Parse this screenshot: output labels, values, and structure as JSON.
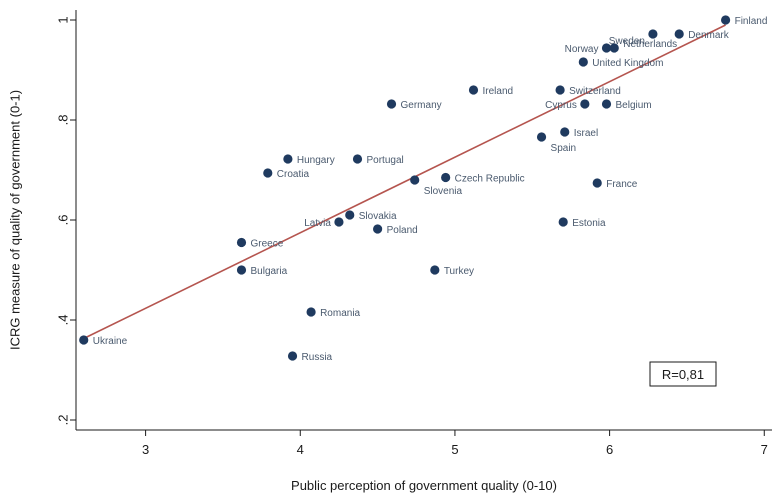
{
  "chart_data": {
    "type": "scatter",
    "title": "",
    "xlabel": "Public perception of government quality (0-10)",
    "ylabel": "ICRG measure of quality of government (0-1)",
    "xlim": [
      2.55,
      7.05
    ],
    "ylim": [
      0.18,
      1.02
    ],
    "xticks": [
      3,
      4,
      5,
      6,
      7
    ],
    "yticks": [
      0.2,
      0.4,
      0.6,
      0.8,
      1.0
    ],
    "xtick_labels": [
      "3",
      "4",
      "5",
      "6",
      "7"
    ],
    "ytick_labels": [
      ".2",
      ".4",
      ".6",
      ".8",
      "1"
    ],
    "grid": false,
    "colors": {
      "point": "#1f3a5f",
      "point_label": "#4a5a6e",
      "fit_line": "#b5554f",
      "axis": "#1a1a1a"
    },
    "points": [
      {
        "label": "Finland",
        "x": 6.75,
        "y": 1.0,
        "label_pos": "right"
      },
      {
        "label": "Sweden",
        "x": 6.28,
        "y": 0.972,
        "label_pos": "left-below"
      },
      {
        "label": "Denmark",
        "x": 6.45,
        "y": 0.972,
        "label_pos": "right"
      },
      {
        "label": "Norway",
        "x": 5.98,
        "y": 0.944,
        "label_pos": "left"
      },
      {
        "label": "Netherlands",
        "x": 6.03,
        "y": 0.944,
        "label_pos": "right-above"
      },
      {
        "label": "United Kingdom",
        "x": 5.83,
        "y": 0.916,
        "label_pos": "right"
      },
      {
        "label": "Ireland",
        "x": 5.12,
        "y": 0.86,
        "label_pos": "right"
      },
      {
        "label": "Switzerland",
        "x": 5.68,
        "y": 0.86,
        "label_pos": "right"
      },
      {
        "label": "Germany",
        "x": 4.59,
        "y": 0.832,
        "label_pos": "right"
      },
      {
        "label": "Cyprus",
        "x": 5.84,
        "y": 0.832,
        "label_pos": "left"
      },
      {
        "label": "Belgium",
        "x": 5.98,
        "y": 0.832,
        "label_pos": "right"
      },
      {
        "label": "Israel",
        "x": 5.71,
        "y": 0.776,
        "label_pos": "right"
      },
      {
        "label": "Spain",
        "x": 5.56,
        "y": 0.766,
        "label_pos": "right-below"
      },
      {
        "label": "Hungary",
        "x": 3.92,
        "y": 0.722,
        "label_pos": "right"
      },
      {
        "label": "Portugal",
        "x": 4.37,
        "y": 0.722,
        "label_pos": "right"
      },
      {
        "label": "Croatia",
        "x": 3.79,
        "y": 0.694,
        "label_pos": "right"
      },
      {
        "label": "Slovenia",
        "x": 4.74,
        "y": 0.68,
        "label_pos": "right-below"
      },
      {
        "label": "Czech Republic",
        "x": 4.94,
        "y": 0.685,
        "label_pos": "right"
      },
      {
        "label": "France",
        "x": 5.92,
        "y": 0.674,
        "label_pos": "right"
      },
      {
        "label": "Slovakia",
        "x": 4.32,
        "y": 0.61,
        "label_pos": "right"
      },
      {
        "label": "Latvia",
        "x": 4.25,
        "y": 0.596,
        "label_pos": "left"
      },
      {
        "label": "Poland",
        "x": 4.5,
        "y": 0.582,
        "label_pos": "right"
      },
      {
        "label": "Estonia",
        "x": 5.7,
        "y": 0.596,
        "label_pos": "right"
      },
      {
        "label": "Greece",
        "x": 3.62,
        "y": 0.555,
        "label_pos": "right"
      },
      {
        "label": "Bulgaria",
        "x": 3.62,
        "y": 0.5,
        "label_pos": "right"
      },
      {
        "label": "Turkey",
        "x": 4.87,
        "y": 0.5,
        "label_pos": "right"
      },
      {
        "label": "Romania",
        "x": 4.07,
        "y": 0.416,
        "label_pos": "right"
      },
      {
        "label": "Ukraine",
        "x": 2.6,
        "y": 0.36,
        "label_pos": "right"
      },
      {
        "label": "Russia",
        "x": 3.95,
        "y": 0.328,
        "label_pos": "right"
      }
    ],
    "fit_line": {
      "x": [
        2.6,
        6.75
      ],
      "y": [
        0.363,
        0.99
      ]
    },
    "annotation": "R=0,81"
  }
}
